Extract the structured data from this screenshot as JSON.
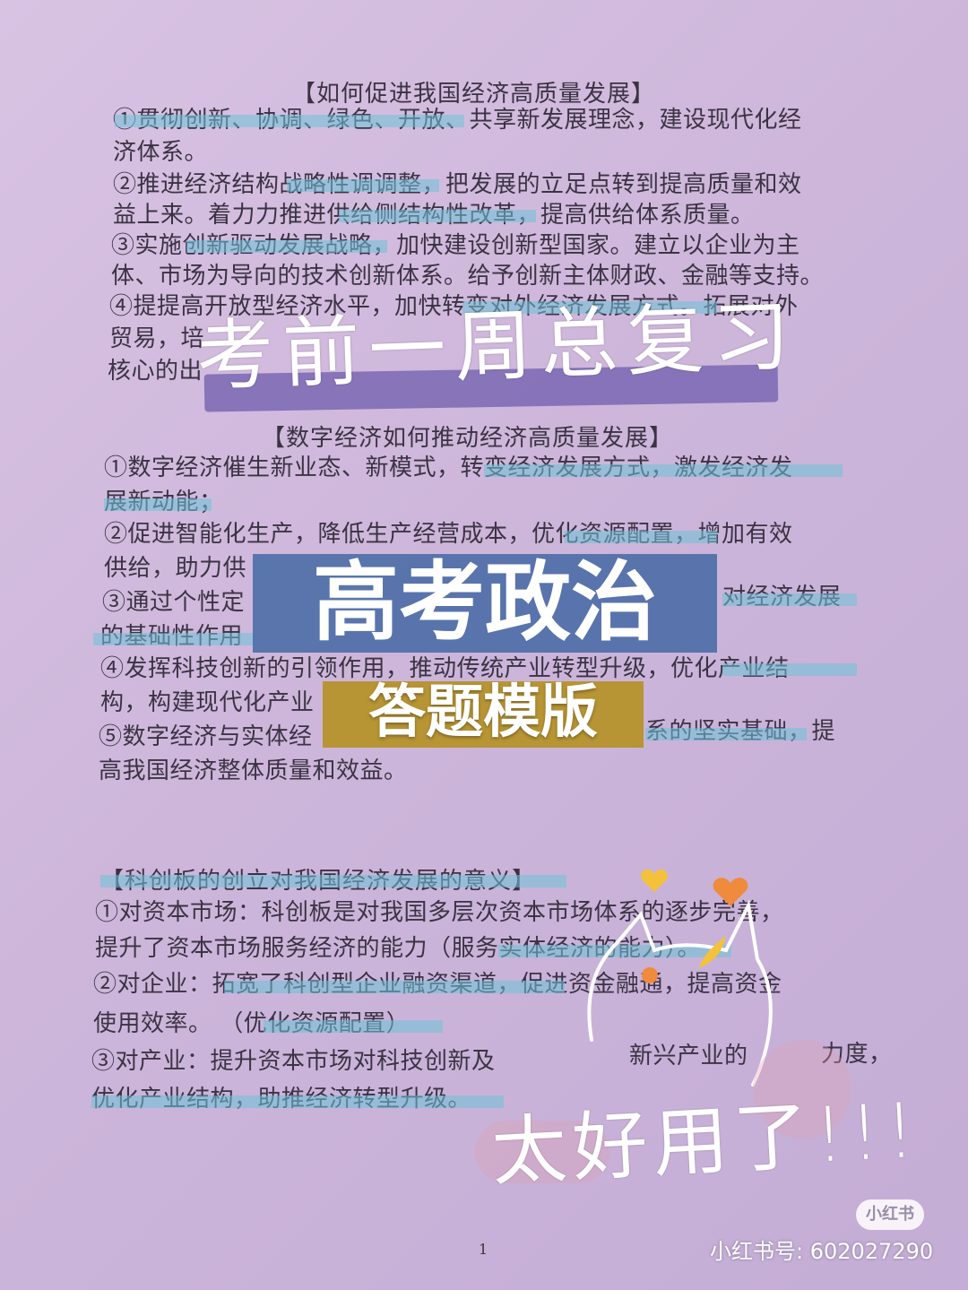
{
  "section1": {
    "heading": "【如何促进我国经济高质量发展】",
    "lines": [
      "①贯彻创新、协调、绿色、开放、共享新发展理念，建设现代化经",
      "济体系。",
      "②推进经济结构战略性调调整，把发展的立足点转到提高质量和效",
      "益上来。着力力推进供给侧结构性改革，提高供给体系质量。",
      "③实施创新驱动发展战略，加快建设创新型国家。建立以企业为主",
      "体、市场为导向的技术创新体系。给予创新主体财政、金融等支持。",
      "④提提高开放型经济水平，加快转变对外经济发展方式。拓展对外",
      "贸易，培",
      "核心的出"
    ]
  },
  "section2": {
    "heading": "【数字经济如何推动经济高质量发展】",
    "lines": [
      "①数字经济催生新业态、新模式，转变经济发展方式，激发经济发",
      "展新动能；",
      "②促进智能化生产，降低生产经营成本，优化资源配置，增加有效",
      "供给，助力供",
      "③通过个性定",
      "对经济发展",
      "的基础性作用",
      "④发挥科技创新的引领作用，推动传统产业转型升级，优化产业结",
      "构，构建现代化产业",
      "⑤数字经济与实体经",
      "系的坚实基础，提",
      "高我国经济整体质量和效益。"
    ]
  },
  "section3": {
    "heading": "【科创板的创立对我国经济发展的意义】",
    "lines": [
      "①对资本市场：科创板是对我国多层次资本市场体系的逐步完善，",
      "提升了资本市场服务经济的能力（服务实体经济的能力）。",
      "②对企业：拓宽了科创型企业融资渠道，促进资金融通，提高资金",
      "使用效率。 （优化资源配置）",
      "③对产业：提升资本市场对科技创新及",
      "新兴产业的",
      "力度，",
      "优化产业结构，助推经济转型升级。"
    ]
  },
  "overlay": {
    "hand_title": "考前一周总复习",
    "main_title": "高考政治",
    "sub_title": "答题模版",
    "hand_bottom": "太好用了!!!"
  },
  "footer": {
    "page_number": "1",
    "logo": "小红书",
    "user_id": "小红书号: 602027290"
  }
}
